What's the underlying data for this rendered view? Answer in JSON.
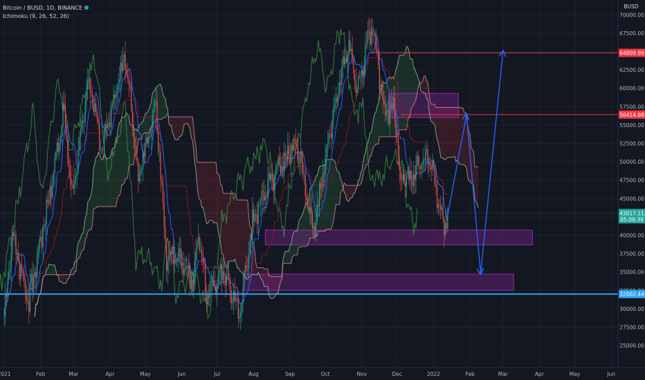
{
  "header": {
    "symbol": "Bitcoin / BUSD, 1D, BINANCE",
    "indicator": "Ichimoku (9, 26, 52, 26)"
  },
  "currency": "BUSD",
  "chart_data": {
    "type": "candlestick",
    "title": "Bitcoin / BUSD, 1D, BINANCE",
    "y_axis": {
      "ticks": [
        25000,
        27500,
        30000,
        32500,
        35000,
        37500,
        40000,
        42500,
        45000,
        47500,
        50000,
        52500,
        55000,
        57500,
        60000,
        62500,
        65000,
        67500,
        70000
      ],
      "range": [
        22000,
        72000
      ],
      "position": "right"
    },
    "x_axis": {
      "ticks": [
        "2021",
        "Feb",
        "Mar",
        "Apr",
        "May",
        "Jun",
        "Jul",
        "Aug",
        "Sep",
        "Oct",
        "Nov",
        "Dec",
        "2022",
        "Feb",
        "Mar",
        "Apr",
        "May",
        "Jun"
      ],
      "tick_dates": [
        "2021-01-01",
        "2021-02-01",
        "2021-03-01",
        "2021-04-01",
        "2021-05-01",
        "2021-06-01",
        "2021-07-01",
        "2021-08-01",
        "2021-09-01",
        "2021-10-01",
        "2021-11-01",
        "2021-12-01",
        "2022-01-01",
        "2022-02-01",
        "2022-03-01",
        "2022-04-01",
        "2022-05-01",
        "2022-06-01"
      ]
    },
    "price_path": [
      [
        "2021-01-01",
        29000
      ],
      [
        "2021-01-08",
        40000
      ],
      [
        "2021-01-22",
        31000
      ],
      [
        "2021-02-08",
        45000
      ],
      [
        "2021-02-21",
        57000
      ],
      [
        "2021-02-28",
        45000
      ],
      [
        "2021-03-13",
        61000
      ],
      [
        "2021-03-25",
        52000
      ],
      [
        "2021-04-14",
        64500
      ],
      [
        "2021-04-25",
        48000
      ],
      [
        "2021-05-10",
        58000
      ],
      [
        "2021-05-19",
        37000
      ],
      [
        "2021-06-01",
        37000
      ],
      [
        "2021-06-10",
        33000
      ],
      [
        "2021-06-15",
        40000
      ],
      [
        "2021-06-22",
        31500
      ],
      [
        "2021-07-06",
        35000
      ],
      [
        "2021-07-20",
        29500
      ],
      [
        "2021-07-31",
        41500
      ],
      [
        "2021-08-14",
        47500
      ],
      [
        "2021-08-23",
        49500
      ],
      [
        "2021-09-06",
        52800
      ],
      [
        "2021-09-21",
        40500
      ],
      [
        "2021-10-06",
        55000
      ],
      [
        "2021-10-20",
        66000
      ],
      [
        "2021-10-28",
        60000
      ],
      [
        "2021-11-10",
        69000
      ],
      [
        "2021-11-20",
        57000
      ],
      [
        "2021-11-28",
        58000
      ],
      [
        "2021-12-04",
        47000
      ],
      [
        "2021-12-16",
        48500
      ],
      [
        "2021-12-27",
        51500
      ],
      [
        "2022-01-04",
        46000
      ],
      [
        "2022-01-10",
        41500
      ],
      [
        "2022-01-13",
        43017
      ]
    ],
    "levels": [
      {
        "label": "64809.99",
        "value": 64809.99,
        "color": "#f23645"
      },
      {
        "label": "56414.68",
        "value": 56414.68,
        "color": "#f23645"
      },
      {
        "label": "32002.44",
        "value": 32002.44,
        "color": "#2fa3f0"
      }
    ],
    "last_price": {
      "label": "43017.11",
      "countdown": "05:09:39",
      "color": "#26a69a"
    },
    "zones": [
      {
        "from": "2021-11-24",
        "to": "2022-01-22",
        "low": 56000,
        "high": 59300
      },
      {
        "from": "2021-08-11",
        "to": "2022-03-26",
        "low": 38700,
        "high": 40700
      },
      {
        "from": "2021-07-24",
        "to": "2022-03-10",
        "low": 32500,
        "high": 34700
      }
    ],
    "projection": [
      [
        "2022-01-13",
        42800
      ],
      [
        "2022-01-29",
        56400
      ],
      [
        "2022-02-10",
        34800
      ],
      [
        "2022-03-01",
        65000
      ]
    ],
    "ichimoku": {
      "conversion": 9,
      "base": 26,
      "span_b": 52,
      "displacement": 26
    }
  }
}
